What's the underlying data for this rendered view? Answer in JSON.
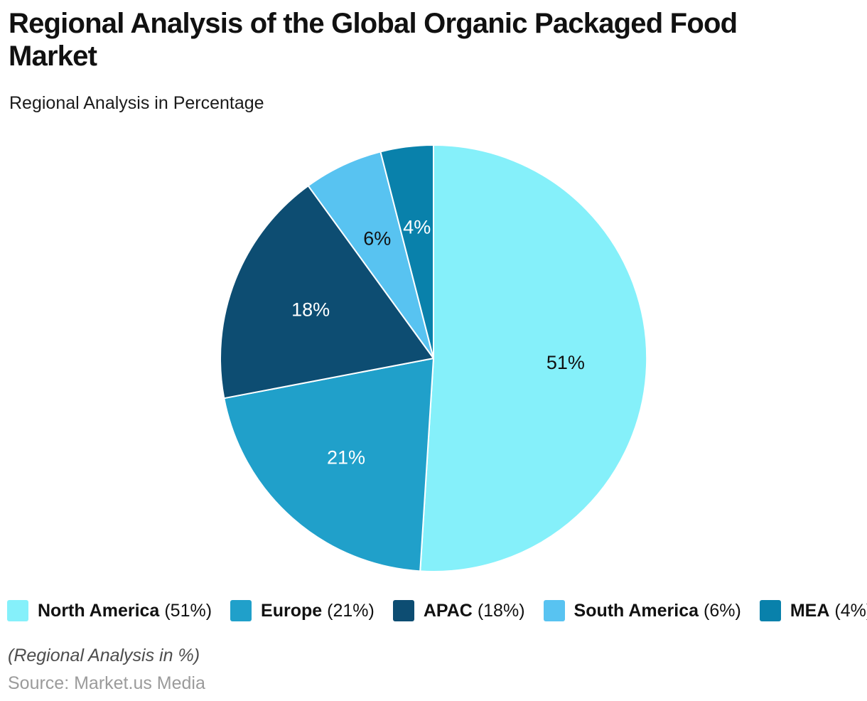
{
  "header": {
    "title": "Regional Analysis of the Global Organic Packaged Food\nMarket",
    "subtitle": "Regional Analysis in Percentage"
  },
  "chart_data": {
    "type": "pie",
    "title": "Regional Analysis of the Global Organic Packaged Food Market",
    "subtitle": "Regional Analysis in Percentage",
    "unit": "%",
    "start_angle_deg": 0,
    "direction": "clockwise",
    "slice_border_color": "#FFFFFF",
    "legend_position": "bottom-left",
    "slices": [
      {
        "label": "North America",
        "value": 51,
        "color": "#85F0FA",
        "data_label": "51%",
        "data_label_color": "#111111"
      },
      {
        "label": "Europe",
        "value": 21,
        "color": "#20A0CA",
        "data_label": "21%",
        "data_label_color": "#FFFFFF"
      },
      {
        "label": "APAC",
        "value": 18,
        "color": "#0D4D72",
        "data_label": "18%",
        "data_label_color": "#FFFFFF"
      },
      {
        "label": "South America",
        "value": 6,
        "color": "#58C3F1",
        "data_label": "6%",
        "data_label_color": "#111111"
      },
      {
        "label": "MEA",
        "value": 4,
        "color": "#0981AB",
        "data_label": "4%",
        "data_label_color": "#FFFFFF"
      }
    ]
  },
  "legend": {
    "items": [
      {
        "name": "North America",
        "pct": "(51%)"
      },
      {
        "name": "Europe",
        "pct": "(21%)"
      },
      {
        "name": "APAC",
        "pct": "(18%)"
      },
      {
        "name": "South America",
        "pct": "(6%)"
      },
      {
        "name": "MEA",
        "pct": "(4%)"
      }
    ]
  },
  "footer": {
    "note": "(Regional Analysis in %)",
    "source": "Source: Market.us Media"
  }
}
